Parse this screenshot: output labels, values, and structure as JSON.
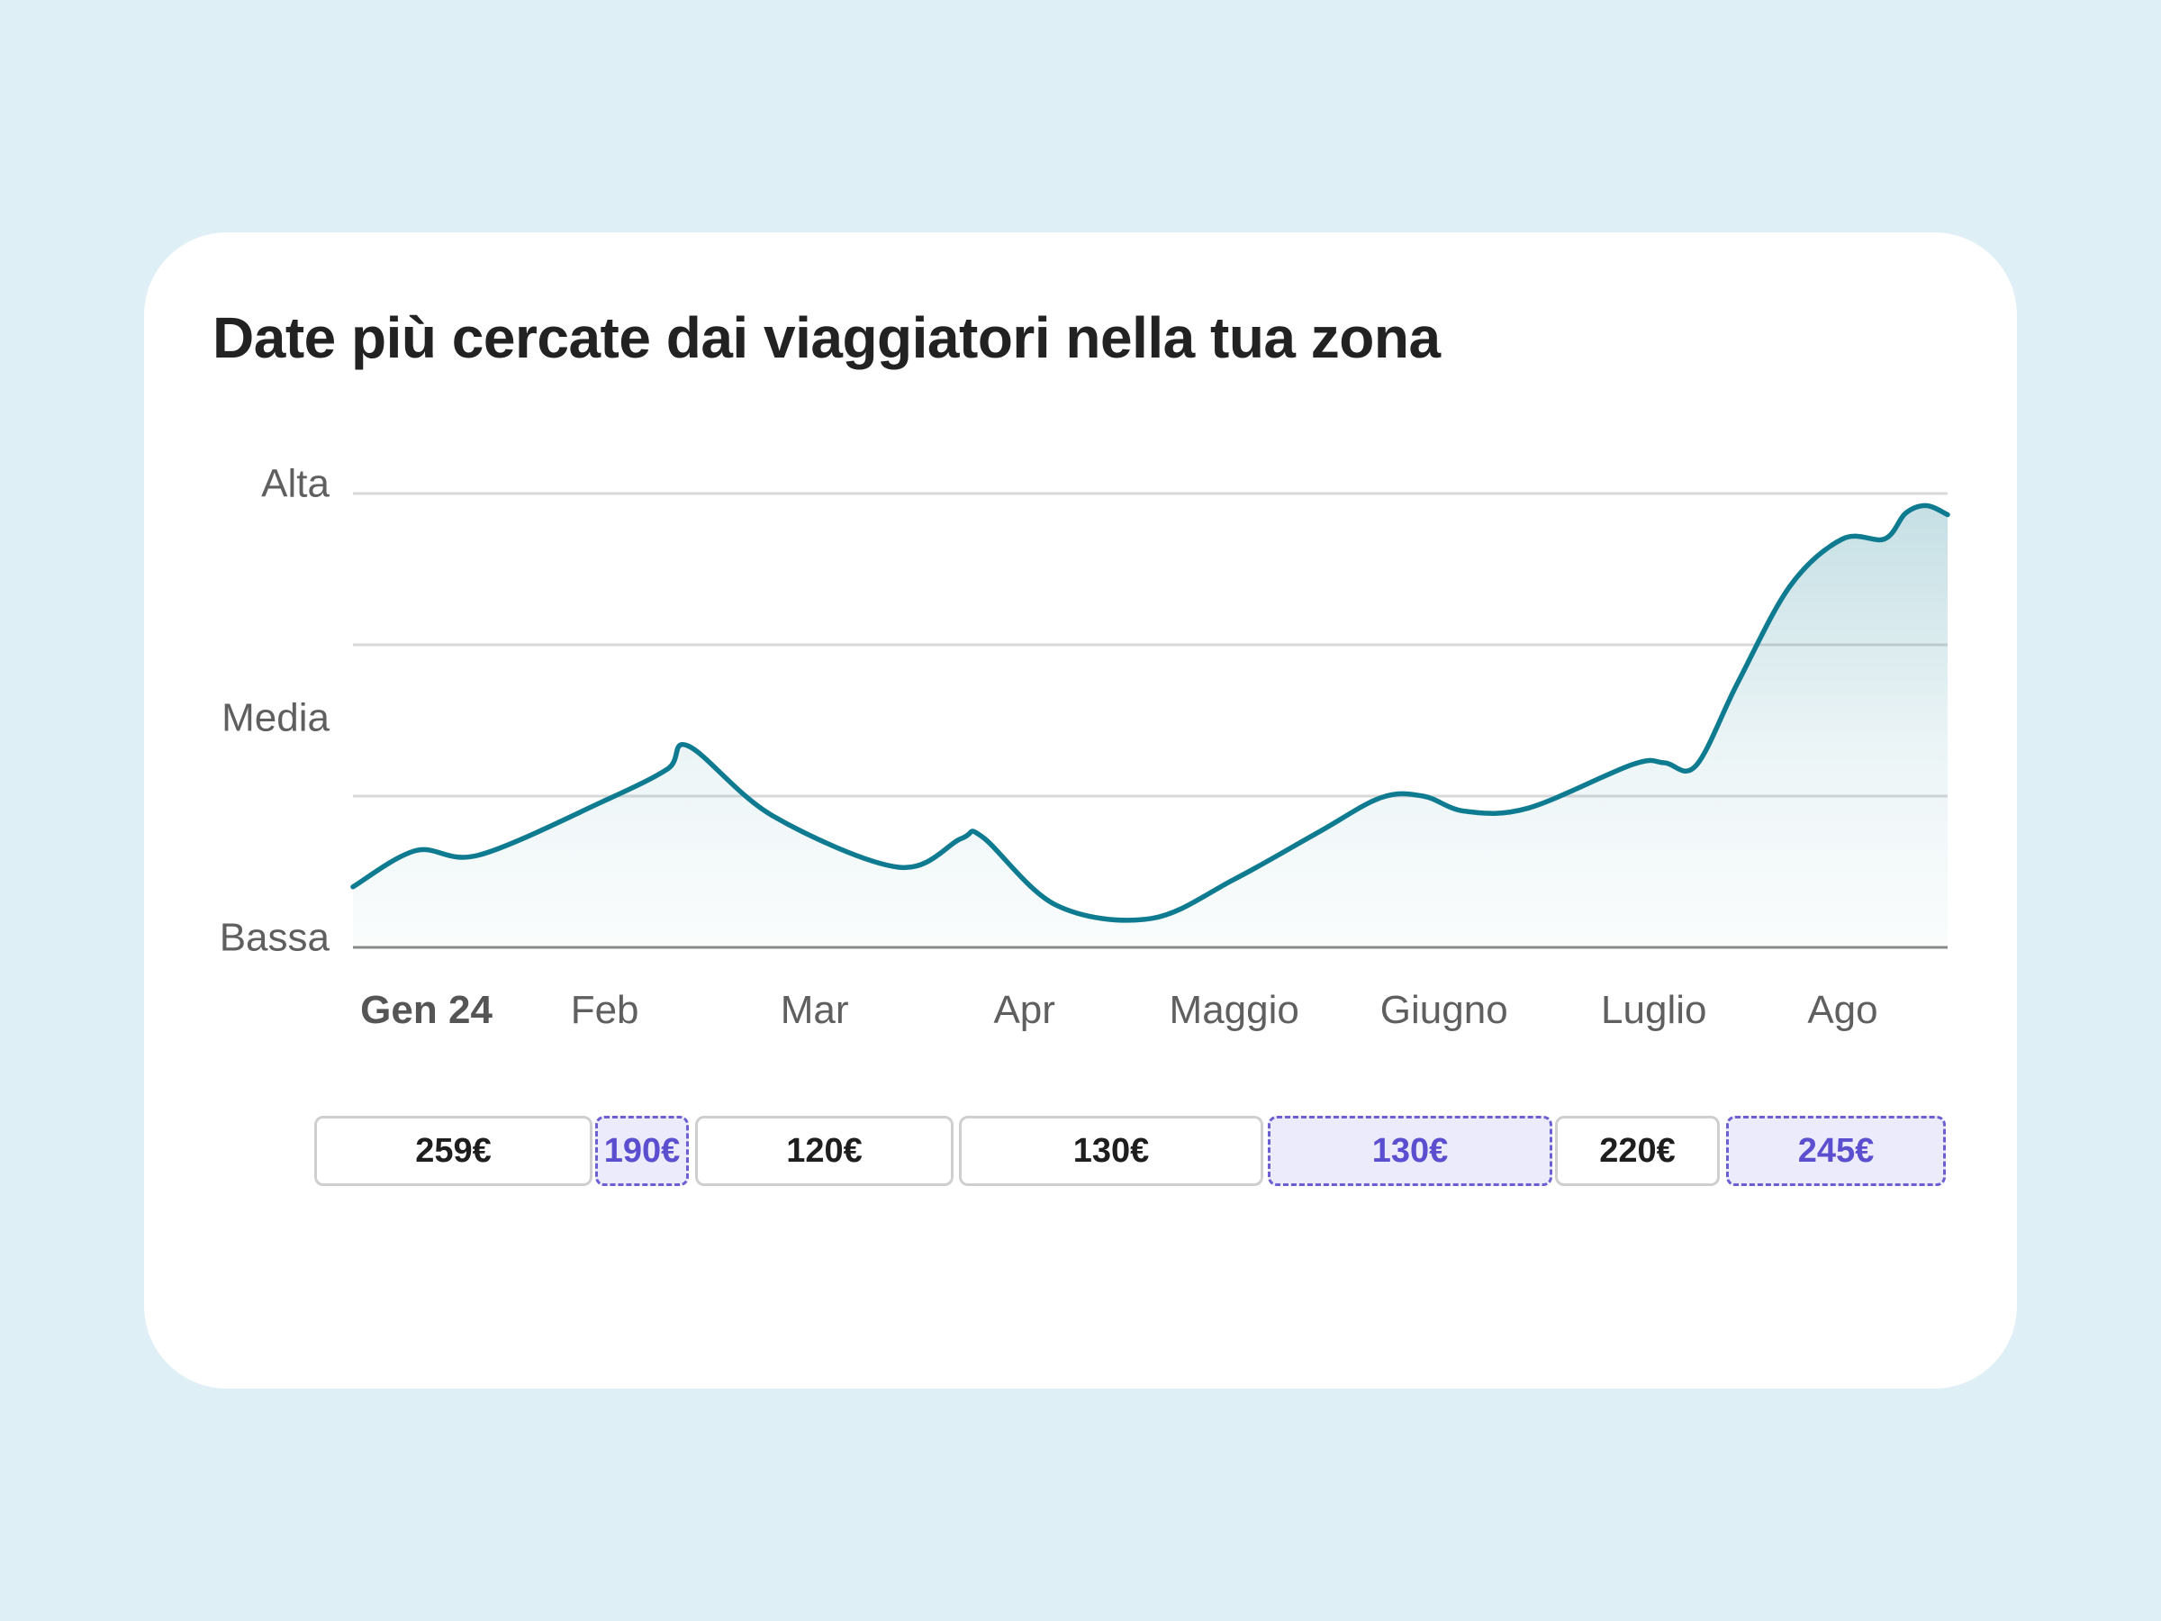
{
  "title": "Date più cercate dai viaggiatori nella tua zona",
  "colors": {
    "background": "#def0f5",
    "line": "#0f7b91",
    "highlight_border": "#6b5fd1",
    "highlight_fill": "#ecebfb"
  },
  "chart_data": {
    "type": "area",
    "title": "Date più cercate dai viaggiatori nella tua zona",
    "y_levels": [
      "Alta",
      "Media",
      "Bassa"
    ],
    "ylim": [
      0,
      3
    ],
    "grid": true,
    "x_ticks": [
      "Gen 24",
      "Feb",
      "Mar",
      "Apr",
      "Maggio",
      "Giugno",
      "Luglio",
      "Ago"
    ],
    "x_tick_positions": [
      0.35,
      1.2,
      2.2,
      3.2,
      4.2,
      5.2,
      6.2,
      7.1
    ],
    "xlim": [
      0,
      7.6
    ],
    "series": [
      {
        "values": [
          [
            0.0,
            0.4
          ],
          [
            0.3,
            0.64
          ],
          [
            0.6,
            0.61
          ],
          [
            1.2,
            0.97
          ],
          [
            1.5,
            1.18
          ],
          [
            1.6,
            1.33
          ],
          [
            2.0,
            0.87
          ],
          [
            2.6,
            0.53
          ],
          [
            2.9,
            0.72
          ],
          [
            3.0,
            0.73
          ],
          [
            3.35,
            0.28
          ],
          [
            3.8,
            0.19
          ],
          [
            4.2,
            0.45
          ],
          [
            4.6,
            0.76
          ],
          [
            4.9,
            0.99
          ],
          [
            5.1,
            1.0
          ],
          [
            5.3,
            0.9
          ],
          [
            5.6,
            0.92
          ],
          [
            6.1,
            1.21
          ],
          [
            6.25,
            1.22
          ],
          [
            6.4,
            1.2
          ],
          [
            6.6,
            1.75
          ],
          [
            6.85,
            2.39
          ],
          [
            7.1,
            2.7
          ],
          [
            7.3,
            2.7
          ],
          [
            7.4,
            2.87
          ],
          [
            7.5,
            2.92
          ],
          [
            7.6,
            2.86
          ]
        ]
      }
    ]
  },
  "prices": [
    {
      "label": "259€",
      "highlighted": false
    },
    {
      "label": "190€",
      "highlighted": true
    },
    {
      "label": "120€",
      "highlighted": false
    },
    {
      "label": "130€",
      "highlighted": false
    },
    {
      "label": "130€",
      "highlighted": true
    },
    {
      "label": "220€",
      "highlighted": false
    },
    {
      "label": "245€",
      "highlighted": true
    }
  ]
}
